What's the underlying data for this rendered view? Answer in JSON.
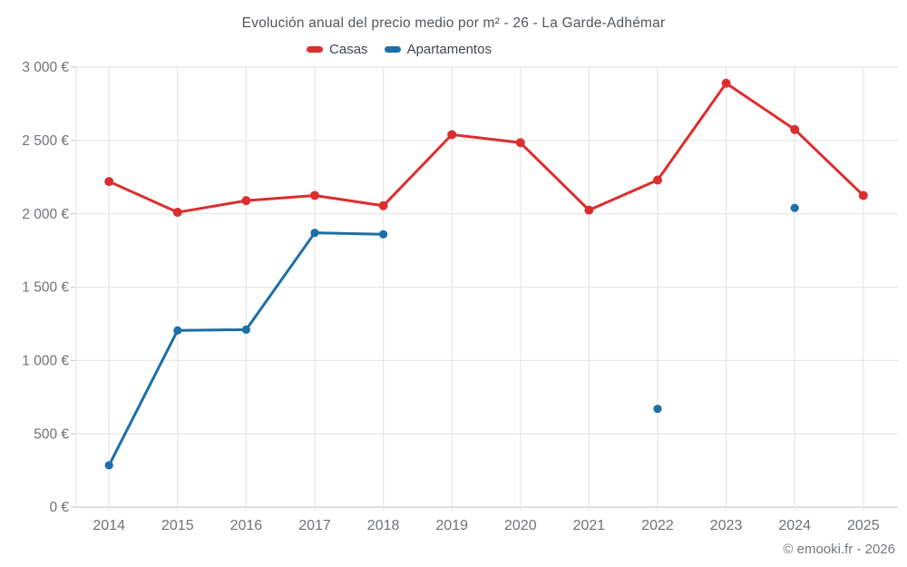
{
  "chart": {
    "title": "Evolución anual del precio medio por m² - 26 - La Garde-Adhémar"
  },
  "legend": {
    "items": [
      {
        "label": "Casas",
        "color": "#dc2e2e"
      },
      {
        "label": "Apartamentos",
        "color": "#1c6fa8"
      }
    ]
  },
  "footer": {
    "copyright": "© emooki.fr - 2026"
  },
  "chart_data": {
    "type": "line",
    "title": "Evolución anual del precio medio por m² - 26 - La Garde-Adhémar",
    "categories": [
      "2014",
      "2015",
      "2016",
      "2017",
      "2018",
      "2019",
      "2020",
      "2021",
      "2022",
      "2023",
      "2024",
      "2025"
    ],
    "series": [
      {
        "name": "Casas",
        "color": "#dc2e2e",
        "marker_radius": 5,
        "values": [
          2220,
          2010,
          2090,
          2125,
          2055,
          2540,
          2485,
          2025,
          2230,
          2890,
          2575,
          2125
        ]
      },
      {
        "name": "Apartamentos",
        "color": "#1c6fa8",
        "marker_radius": 4.6,
        "values": [
          285,
          1205,
          1210,
          1870,
          1860,
          null,
          null,
          null,
          670,
          null,
          2040,
          null
        ]
      }
    ],
    "xlabel": "",
    "ylabel": "",
    "ylim": [
      0,
      3000
    ],
    "y_ticks": [
      {
        "value": 0,
        "label": "0 €"
      },
      {
        "value": 500,
        "label": "500 €"
      },
      {
        "value": 1000,
        "label": "1 000 €"
      },
      {
        "value": 1500,
        "label": "1 500 €"
      },
      {
        "value": 2000,
        "label": "2 000 €"
      },
      {
        "value": 2500,
        "label": "2 500 €"
      },
      {
        "value": 3000,
        "label": "3 000 €"
      }
    ],
    "grid": true,
    "legend_position": "top"
  }
}
